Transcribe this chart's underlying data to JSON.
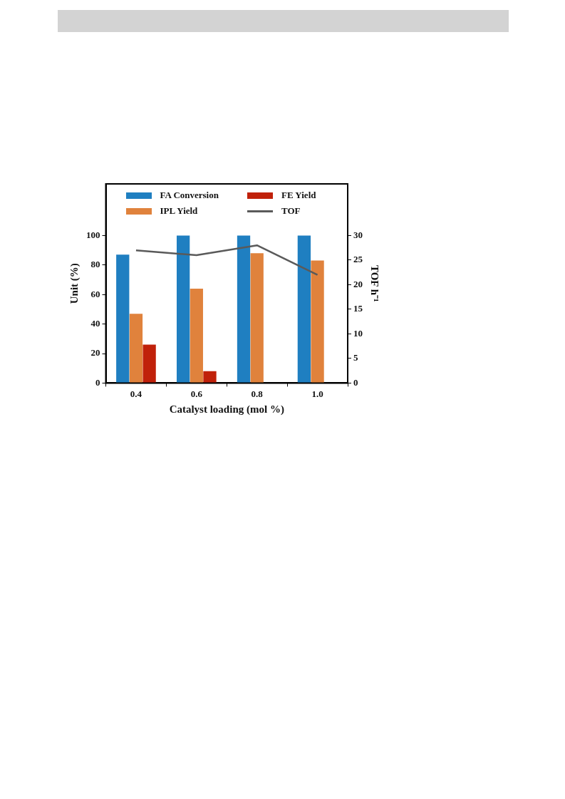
{
  "chart_data": {
    "type": "bar",
    "xlabel": "Catalyst loading (mol %)",
    "ylabel": "Unit (%)",
    "y2label": "TOF h⁻¹",
    "categories": [
      "0.4",
      "0.6",
      "0.8",
      "1.0"
    ],
    "series": [
      {
        "name": "FA Conversion",
        "color": "#1f7fc1",
        "values": [
          87,
          100,
          100,
          100
        ]
      },
      {
        "name": "IPL Yield",
        "color": "#e0823c",
        "values": [
          47,
          64,
          88,
          83
        ]
      },
      {
        "name": "FE Yield",
        "color": "#c0210a",
        "values": [
          26,
          8,
          0,
          0
        ]
      },
      {
        "name": "TOF",
        "type": "line",
        "axis": "y2",
        "color": "#5a5a5a",
        "values": [
          27,
          26,
          28,
          22
        ]
      }
    ],
    "ylim": [
      0,
      135
    ],
    "yticks": [
      0,
      20,
      40,
      60,
      80,
      100
    ],
    "y2lim": [
      0,
      40.5
    ],
    "y2ticks": [
      0,
      5,
      10,
      15,
      20,
      25,
      30
    ],
    "grid": false,
    "legend": "top",
    "marker": "none"
  }
}
